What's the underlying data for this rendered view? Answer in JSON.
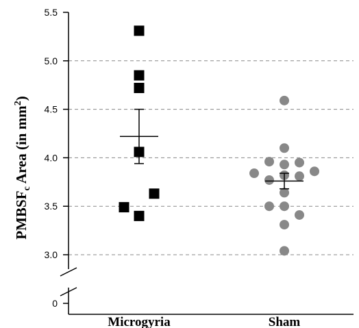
{
  "chart_data": {
    "type": "scatter",
    "ylabel": {
      "prefix": "PMBSF",
      "subscript": "c",
      "middle": " Area (in mm",
      "superscript": "2",
      "suffix": ")"
    },
    "categories": [
      "Microgyria",
      "Sham"
    ],
    "yticks": [
      "0",
      "3.0",
      "3.5",
      "4.0",
      "4.5",
      "5.0",
      "5.5"
    ],
    "ylim": [
      3.0,
      5.5
    ],
    "axis_break": true,
    "grid": "dashed-horizontal",
    "series": [
      {
        "category": "Microgyria",
        "marker": "square",
        "color": "#000000",
        "points": [
          {
            "offset": 0,
            "y": 5.31
          },
          {
            "offset": 0,
            "y": 4.85
          },
          {
            "offset": 0,
            "y": 4.72
          },
          {
            "offset": 0,
            "y": 4.06
          },
          {
            "offset": 1,
            "y": 3.63
          },
          {
            "offset": -1,
            "y": 3.49
          },
          {
            "offset": 0,
            "y": 3.4
          }
        ],
        "mean": 4.22,
        "sem_upper": 4.5,
        "sem_lower": 3.94
      },
      {
        "category": "Sham",
        "marker": "circle",
        "color": "#888888",
        "points": [
          {
            "offset": 0,
            "y": 4.59
          },
          {
            "offset": 0,
            "y": 4.1
          },
          {
            "offset": -1,
            "y": 3.96
          },
          {
            "offset": 1,
            "y": 3.95
          },
          {
            "offset": 0,
            "y": 3.93
          },
          {
            "offset": -2,
            "y": 3.84
          },
          {
            "offset": 2,
            "y": 3.86
          },
          {
            "offset": 0,
            "y": 3.82
          },
          {
            "offset": 1,
            "y": 3.81
          },
          {
            "offset": -1,
            "y": 3.77
          },
          {
            "offset": 0,
            "y": 3.64
          },
          {
            "offset": -1,
            "y": 3.5
          },
          {
            "offset": 0,
            "y": 3.5
          },
          {
            "offset": 1,
            "y": 3.41
          },
          {
            "offset": 0,
            "y": 3.31
          },
          {
            "offset": 0,
            "y": 3.04
          }
        ],
        "mean": 3.76,
        "sem_upper": 3.84,
        "sem_lower": 3.68
      }
    ]
  }
}
